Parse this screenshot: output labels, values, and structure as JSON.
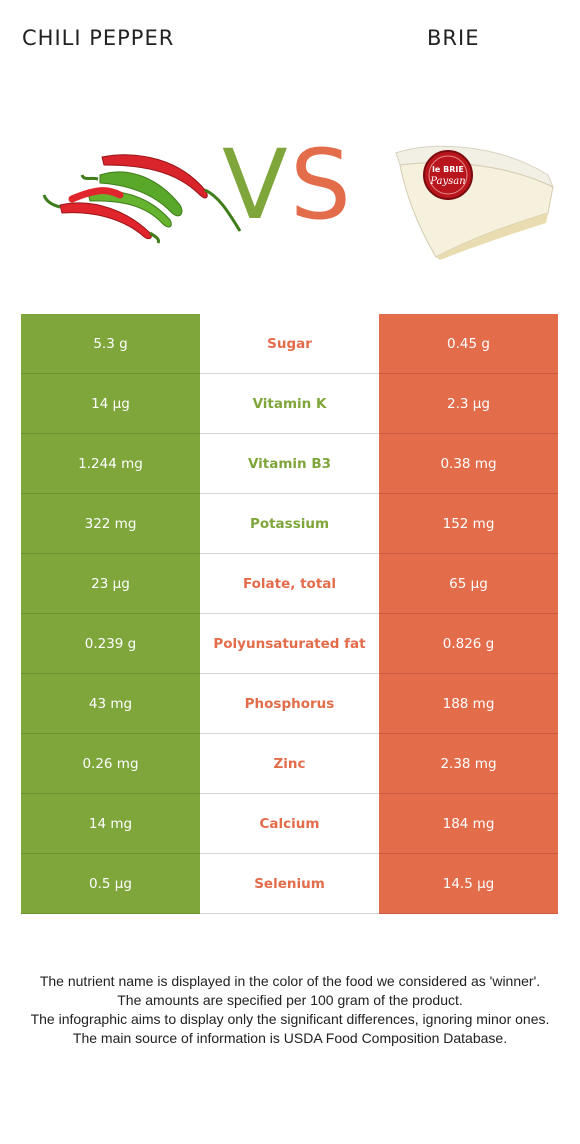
{
  "header": {
    "left_food": "CHILI PEPPER",
    "right_food": "BRIE",
    "vs_v": "V",
    "vs_s": "S"
  },
  "colors": {
    "left_winner": "#7fa63a",
    "right_winner": "#e36c4b"
  },
  "images": {
    "left": "chili-pepper-illustration",
    "right": "brie-cheese-illustration",
    "brie_label_line1": "le BRIE",
    "brie_label_line2": "Paysan"
  },
  "rows": [
    {
      "left": "5.3 g",
      "nutrient": "Sugar",
      "right": "0.45 g",
      "winner": "right"
    },
    {
      "left": "14 µg",
      "nutrient": "Vitamin K",
      "right": "2.3 µg",
      "winner": "left"
    },
    {
      "left": "1.244 mg",
      "nutrient": "Vitamin B3",
      "right": "0.38 mg",
      "winner": "left"
    },
    {
      "left": "322 mg",
      "nutrient": "Potassium",
      "right": "152 mg",
      "winner": "left"
    },
    {
      "left": "23 µg",
      "nutrient": "Folate, total",
      "right": "65 µg",
      "winner": "right"
    },
    {
      "left": "0.239 g",
      "nutrient": "Polyunsaturated fat",
      "right": "0.826 g",
      "winner": "right"
    },
    {
      "left": "43 mg",
      "nutrient": "Phosphorus",
      "right": "188 mg",
      "winner": "right"
    },
    {
      "left": "0.26 mg",
      "nutrient": "Zinc",
      "right": "2.38 mg",
      "winner": "right"
    },
    {
      "left": "14 mg",
      "nutrient": "Calcium",
      "right": "184 mg",
      "winner": "right"
    },
    {
      "left": "0.5 µg",
      "nutrient": "Selenium",
      "right": "14.5 µg",
      "winner": "right"
    }
  ],
  "footer": {
    "line1": "The nutrient name is displayed in the color of the food we considered as 'winner'.",
    "line2": "The amounts are specified per 100 gram of the product.",
    "line3": "The infographic aims to display only the significant differences, ignoring minor ones.",
    "line4": "The main source of information is USDA Food Composition Database."
  }
}
